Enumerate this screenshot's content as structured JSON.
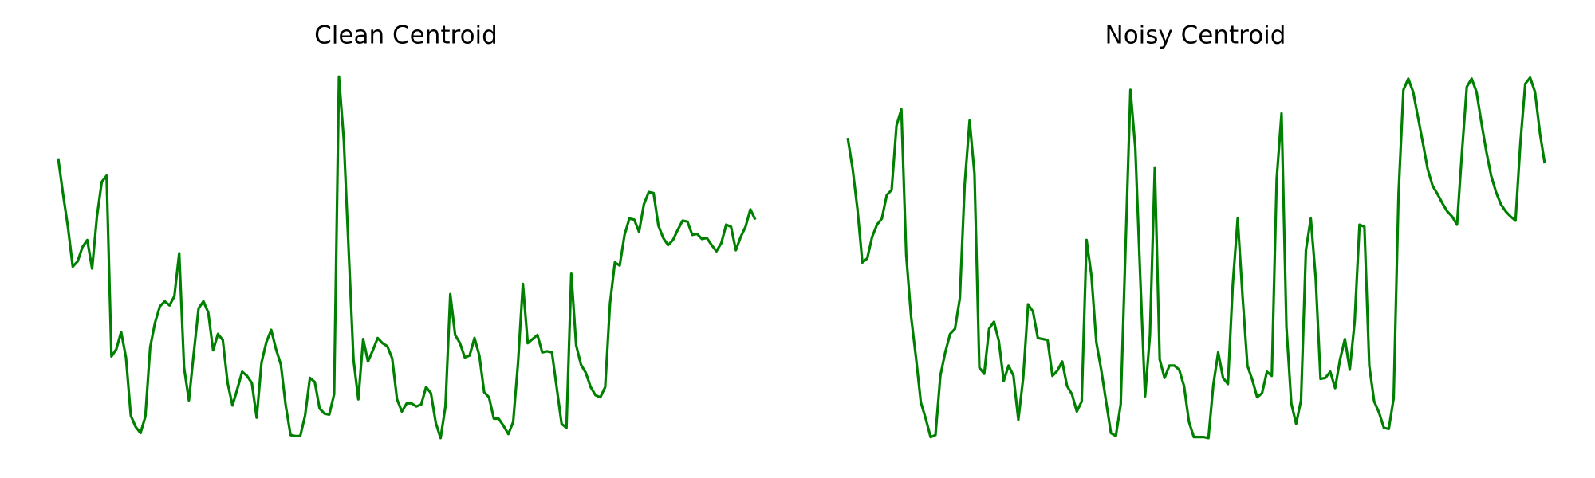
{
  "chart_data": [
    {
      "type": "line",
      "title": "Clean Centroid",
      "color": "#008000",
      "ylim": [
        0,
        380
      ],
      "values": [
        285,
        250,
        218,
        179,
        184,
        198,
        205,
        177,
        228,
        262,
        268,
        91,
        98,
        115,
        90,
        33,
        22,
        16,
        32,
        100,
        124,
        140,
        145,
        141,
        150,
        192,
        80,
        48,
        94,
        138,
        145,
        134,
        97,
        113,
        107,
        65,
        43,
        59,
        76,
        72,
        65,
        31,
        85,
        105,
        117,
        98,
        83,
        43,
        14,
        13,
        13,
        33,
        70,
        66,
        40,
        35,
        34,
        54,
        365,
        303,
        195,
        88,
        49,
        108,
        86,
        97,
        109,
        104,
        101,
        89,
        49,
        37,
        45,
        45,
        42,
        44,
        61,
        55,
        26,
        11,
        42,
        152,
        112,
        104,
        90,
        92,
        109,
        92,
        56,
        51,
        30,
        30,
        23,
        15,
        27,
        85,
        162,
        104,
        108,
        112,
        95,
        96,
        95,
        60,
        25,
        21,
        172,
        102,
        83,
        75,
        61,
        53,
        51,
        61,
        143,
        183,
        180,
        210,
        226,
        225,
        213,
        240,
        252,
        251,
        219,
        207,
        200,
        205,
        215,
        224,
        223,
        210,
        211,
        206,
        207,
        200,
        194,
        202,
        220,
        218,
        195,
        208,
        218,
        235,
        225
      ]
    },
    {
      "type": "line",
      "title": "Noisy Centroid",
      "color": "#008000",
      "ylim": [
        0,
        380
      ],
      "values": [
        305,
        275,
        235,
        183,
        187,
        208,
        220,
        226,
        249,
        254,
        317,
        333,
        190,
        130,
        90,
        46,
        30,
        12,
        14,
        72,
        95,
        113,
        118,
        148,
        260,
        322,
        270,
        80,
        74,
        118,
        125,
        106,
        67,
        82,
        72,
        29,
        70,
        142,
        135,
        109,
        108,
        107,
        72,
        77,
        86,
        62,
        54,
        37,
        47,
        205,
        170,
        105,
        78,
        47,
        16,
        13,
        44,
        199,
        352,
        295,
        170,
        52,
        112,
        276,
        88,
        70,
        82,
        82,
        78,
        62,
        27,
        12,
        12,
        12,
        11,
        63,
        95,
        70,
        64,
        162,
        226,
        150,
        82,
        68,
        51,
        55,
        76,
        72,
        265,
        329,
        120,
        45,
        25,
        48,
        195,
        226,
        168,
        69,
        70,
        76,
        60,
        88,
        108,
        78,
        125,
        220,
        218,
        82,
        47,
        36,
        21,
        20,
        50,
        250,
        352,
        363,
        350,
        325,
        300,
        274,
        258,
        250,
        241,
        233,
        228,
        220,
        290,
        355,
        363,
        350,
        320,
        292,
        268,
        252,
        240,
        233,
        228,
        224,
        300,
        358,
        364,
        350,
        310,
        280
      ]
    }
  ]
}
